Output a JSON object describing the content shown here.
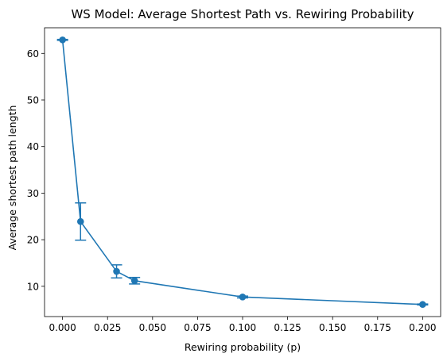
{
  "chart_data": {
    "type": "line",
    "title": "WS Model: Average Shortest Path vs. Rewiring Probability",
    "xlabel": "Rewiring probability (p)",
    "ylabel": "Average shortest path length",
    "xlim": [
      -0.01,
      0.21
    ],
    "ylim": [
      3.5,
      65.5
    ],
    "xticks": [
      0.0,
      0.025,
      0.05,
      0.075,
      0.1,
      0.125,
      0.15,
      0.175,
      0.2
    ],
    "xtick_labels": [
      "0.000",
      "0.025",
      "0.050",
      "0.075",
      "0.100",
      "0.125",
      "0.150",
      "0.175",
      "0.200"
    ],
    "yticks": [
      10,
      20,
      30,
      40,
      50,
      60
    ],
    "ytick_labels": [
      "10",
      "20",
      "30",
      "40",
      "50",
      "60"
    ],
    "grid": false,
    "series": [
      {
        "color": "#1f77b4",
        "marker": "circle",
        "error_bars": true,
        "x": [
          0.0,
          0.01,
          0.03,
          0.04,
          0.1,
          0.2
        ],
        "y": [
          62.9,
          23.9,
          13.2,
          11.2,
          7.7,
          6.1
        ],
        "yerr": [
          0.1,
          4.0,
          1.4,
          0.7,
          0.2,
          0.1
        ]
      }
    ]
  }
}
